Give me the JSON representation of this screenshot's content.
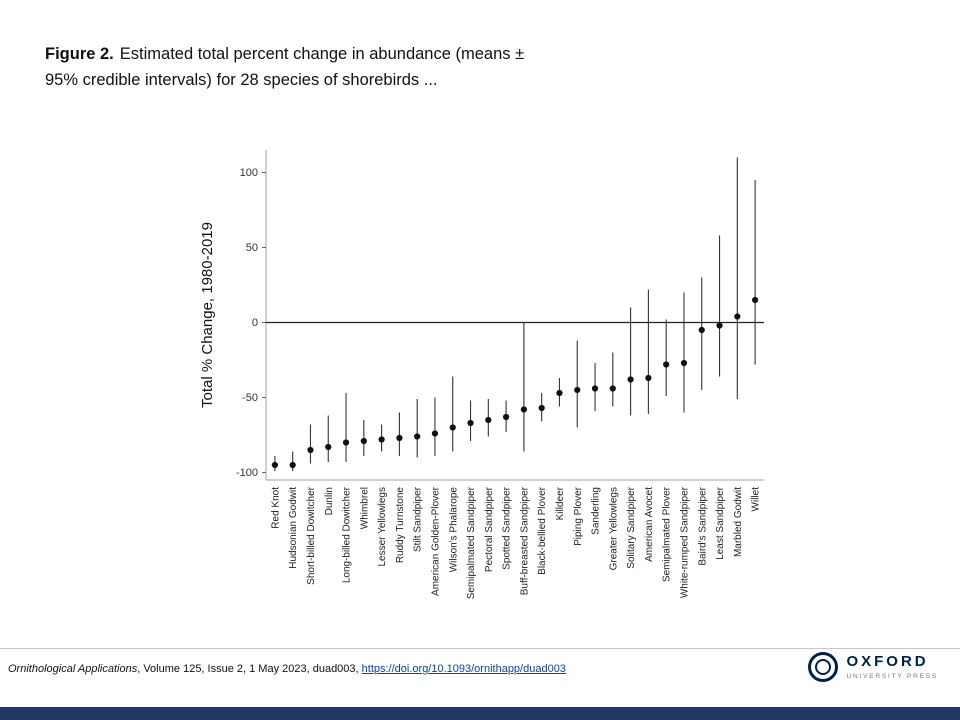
{
  "title": {
    "bold": "Figure 2.",
    "line1": "Estimated total percent change in abundance (means ±",
    "line2": "95% credible intervals) for 28 species of shorebirds ..."
  },
  "footer": {
    "journal": "Ornithological Applications",
    "rest": ", Volume 125, Issue 2, 1 May 2023, duad003, ",
    "doi": "https://doi.org/10.1093/ornithapp/duad003"
  },
  "logo": {
    "title": "OXFORD",
    "subtitle": "UNIVERSITY PRESS",
    "color": "#002147"
  },
  "colors": {
    "point": "#111111",
    "error_bar": "#333333",
    "zero_line": "#222222",
    "axis": "#a0a0a0",
    "bottom_bar": "#203864",
    "link": "#0645ad"
  },
  "chart_data": {
    "type": "scatter",
    "title": "",
    "xlabel": "",
    "ylabel": "Total % Change, 1980-2019",
    "ylim": [
      -105,
      115
    ],
    "yticks": [
      100,
      50,
      0,
      -50,
      -100
    ],
    "zero_line": true,
    "error_bars": "95% credible intervals",
    "species": [
      "Red Knot",
      "Hudsonian Godwit",
      "Short-billed Dowitcher",
      "Dunlin",
      "Long-billed Dowitcher",
      "Whimbrel",
      "Lesser Yellowlegs",
      "Ruddy Turnstone",
      "Stilt Sandpiper",
      "American Golden-Plover",
      "Wilson's Phalarope",
      "Semipalmated Sandpiper",
      "Pectoral Sandpiper",
      "Spotted Sandpiper",
      "Buff-breasted Sandpiper",
      "Black-bellied Plover",
      "Killdeer",
      "Piping Plover",
      "Sanderling",
      "Greater Yellowlegs",
      "Solitary Sandpiper",
      "American Avocet",
      "Semipalmated Plover",
      "White-rumped Sandpiper",
      "Baird's Sandpiper",
      "Least Sandpiper",
      "Marbled Godwit",
      "Willet"
    ],
    "means": [
      -95,
      -95,
      -85,
      -83,
      -80,
      -79,
      -78,
      -77,
      -76,
      -74,
      -70,
      -67,
      -65,
      -63,
      -58,
      -57,
      -47,
      -45,
      -44,
      -44,
      -38,
      -37,
      -28,
      -27,
      -5,
      -2,
      4,
      15
    ],
    "ci_low": [
      -99,
      -99,
      -94,
      -93,
      -93,
      -89,
      -86,
      -89,
      -90,
      -89,
      -86,
      -79,
      -76,
      -73,
      -86,
      -66,
      -56,
      -70,
      -59,
      -56,
      -62,
      -61,
      -49,
      -60,
      -45,
      -36,
      -51,
      -28
    ],
    "ci_high": [
      -89,
      -86,
      -68,
      -62,
      -47,
      -65,
      -68,
      -60,
      -51,
      -50,
      -36,
      -52,
      -51,
      -52,
      0,
      -47,
      -37,
      -12,
      -27,
      -20,
      10,
      22,
      2,
      20,
      30,
      58,
      110,
      95
    ]
  }
}
